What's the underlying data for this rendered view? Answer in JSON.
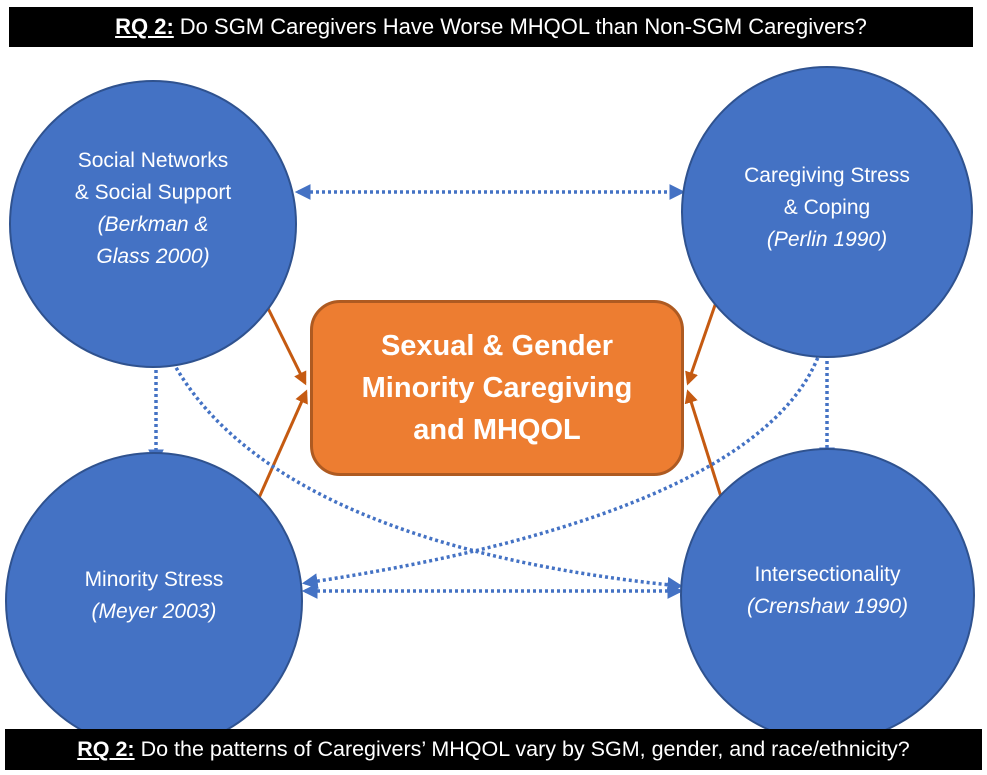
{
  "banners": {
    "top": {
      "prefix": "RQ 2:",
      "text": "Do SGM Caregivers Have Worse MHQOL than Non-SGM Caregivers?"
    },
    "bottom": {
      "prefix": "RQ 2:",
      "text": "Do the patterns of Caregivers’ MHQOL vary by SGM, gender, and race/ethnicity?"
    }
  },
  "nodes": {
    "social": {
      "line1": "Social Networks",
      "line2": "& Social Support",
      "citation": "(Berkman & Glass 2000)"
    },
    "stress": {
      "line1": "Caregiving Stress",
      "line2": "& Coping",
      "citation": "(Perlin 1990)"
    },
    "minority": {
      "line1": "Minority Stress",
      "citation": "(Meyer 2003)"
    },
    "intersectionality": {
      "line1": "Intersectionality",
      "citation": "(Crenshaw 1990)"
    }
  },
  "center": {
    "label": "Sexual & Gender Minority Caregiving and MHQOL"
  },
  "colors": {
    "circle_fill": "#4472c4",
    "center_fill": "#ed7d31",
    "solid_arrow": "#c55a11",
    "dotted_arrow": "#4472c4",
    "banner_bg": "#000000"
  }
}
